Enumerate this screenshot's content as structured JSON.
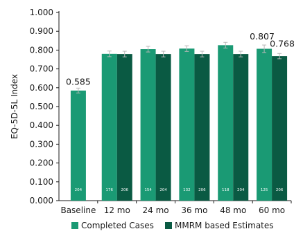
{
  "chart_data": {
    "type": "bar",
    "ylabel": "EQ-5D-5L Index",
    "xlabel": "",
    "ylim": [
      0,
      1.0
    ],
    "yticks": [
      "0.000",
      "0.100",
      "0.200",
      "0.300",
      "0.400",
      "0.500",
      "0.600",
      "0.700",
      "0.800",
      "0.900",
      "1.000"
    ],
    "categories": [
      "Baseline",
      "12 mo",
      "24 mo",
      "36 mo",
      "48 mo",
      "60 mo"
    ],
    "legend_position": "bottom",
    "series": [
      {
        "name": "Completed Cases",
        "color": "#1a9a74",
        "values": [
          0.585,
          0.78,
          0.805,
          0.808,
          0.826,
          0.807
        ],
        "errors": [
          0.013,
          0.015,
          0.015,
          0.015,
          0.015,
          0.02
        ],
        "n": [
          "204",
          "176",
          "154",
          "132",
          "118",
          "125"
        ],
        "value_labels": [
          "0.585",
          null,
          null,
          null,
          null,
          "0.807"
        ]
      },
      {
        "name": "MMRM based Estimates",
        "color": "#0a5a43",
        "values": [
          null,
          0.779,
          0.779,
          0.779,
          0.779,
          0.768
        ],
        "errors": [
          null,
          0.015,
          0.015,
          0.015,
          0.015,
          0.014
        ],
        "n": [
          null,
          "206",
          "204",
          "206",
          "204",
          "206"
        ],
        "value_labels": [
          null,
          null,
          null,
          null,
          null,
          "0.768"
        ]
      }
    ],
    "error_bar_color": "#b8b8b8"
  }
}
